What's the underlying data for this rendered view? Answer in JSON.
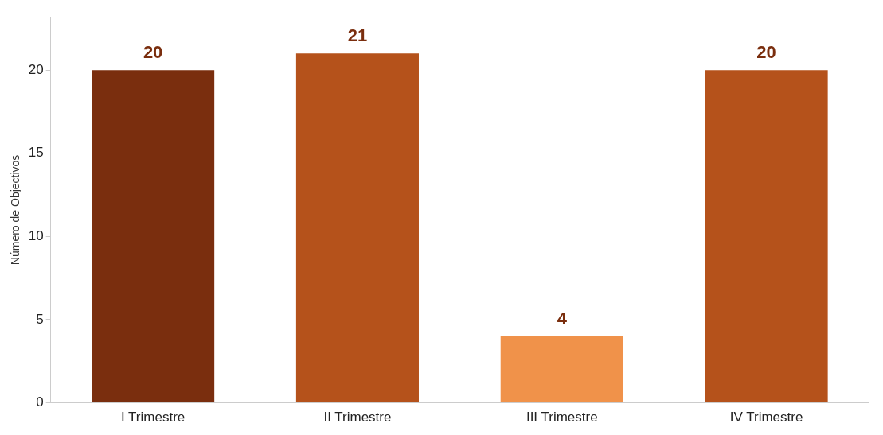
{
  "chart_data": {
    "type": "bar",
    "ylabel": "Número de Objectivos",
    "categories": [
      "I Trimestre",
      "II Trimestre",
      "III Trimestre",
      "IV Trimestre"
    ],
    "values": [
      20,
      21,
      4,
      20
    ],
    "colors": [
      "#7a2e0e",
      "#b5521b",
      "#f0924a",
      "#b5521b"
    ],
    "ylim": [
      0,
      23.2
    ],
    "yticks": [
      0,
      5,
      10,
      15,
      20
    ],
    "grid": false,
    "data_labels": true
  }
}
